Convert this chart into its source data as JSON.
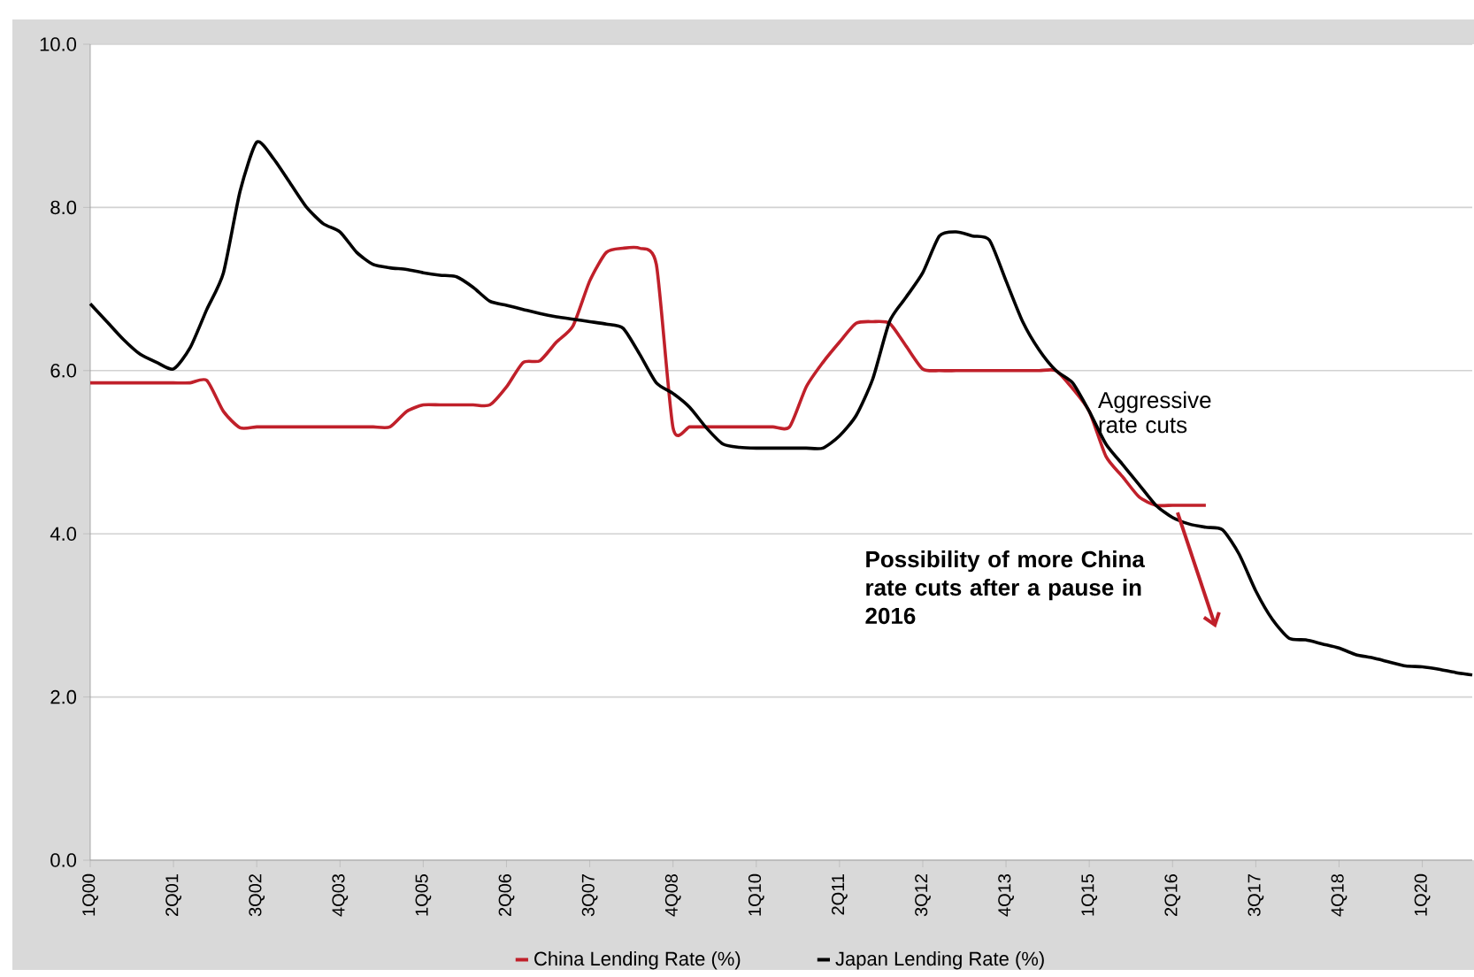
{
  "chart_data": {
    "type": "line",
    "categories": [
      "1Q00",
      null,
      null,
      null,
      null,
      "2Q01",
      null,
      null,
      null,
      null,
      "3Q02",
      null,
      null,
      null,
      null,
      "4Q03",
      null,
      null,
      null,
      null,
      "1Q05",
      null,
      null,
      null,
      null,
      "2Q06",
      null,
      null,
      null,
      null,
      "3Q07",
      null,
      null,
      null,
      null,
      "4Q08",
      null,
      null,
      null,
      null,
      "1Q10",
      null,
      null,
      null,
      null,
      "2Q11",
      null,
      null,
      null,
      null,
      "3Q12",
      null,
      null,
      null,
      null,
      "4Q13",
      null,
      null,
      null,
      null,
      "1Q15",
      null,
      null,
      null,
      null,
      "2Q16",
      null,
      null,
      null,
      null,
      "3Q17",
      null,
      null,
      null,
      null,
      "4Q18",
      null,
      null,
      null,
      null,
      "1Q20",
      null,
      null,
      null
    ],
    "series": [
      {
        "name": "China Lending Rate (%)",
        "color": "#c0202a",
        "values": [
          5.85,
          5.85,
          5.85,
          5.85,
          5.85,
          5.85,
          5.85,
          5.88,
          5.5,
          5.3,
          5.31,
          5.31,
          5.31,
          5.31,
          5.31,
          5.31,
          5.31,
          5.31,
          5.31,
          5.5,
          5.58,
          5.58,
          5.58,
          5.58,
          5.58,
          5.8,
          6.1,
          6.12,
          6.35,
          6.55,
          7.1,
          7.45,
          7.5,
          7.5,
          7.3,
          5.3,
          5.31,
          5.31,
          5.31,
          5.31,
          5.31,
          5.31,
          5.31,
          5.8,
          6.1,
          6.35,
          6.58,
          6.6,
          6.58,
          6.3,
          6.02,
          6.0,
          6.0,
          6.0,
          6.0,
          6.0,
          6.0,
          6.0,
          6.0,
          5.78,
          5.5,
          4.95,
          4.7,
          4.45,
          4.35,
          4.35,
          4.35,
          4.35,
          null,
          null,
          null,
          null,
          null,
          null,
          null,
          null,
          null,
          null,
          null,
          null,
          null,
          null,
          null,
          null
        ]
      },
      {
        "name": "Japan Lending Rate (%)",
        "color": "#000000",
        "values": [
          6.82,
          6.6,
          6.38,
          6.2,
          6.1,
          6.02,
          6.28,
          6.75,
          7.2,
          8.2,
          8.8,
          8.6,
          8.3,
          8.0,
          7.8,
          7.7,
          7.45,
          7.3,
          7.26,
          7.24,
          7.2,
          7.17,
          7.15,
          7.02,
          6.85,
          6.8,
          6.75,
          6.7,
          6.66,
          6.63,
          6.6,
          6.57,
          6.52,
          6.2,
          5.85,
          5.72,
          5.55,
          5.3,
          5.1,
          5.06,
          5.05,
          5.05,
          5.05,
          5.05,
          5.05,
          5.2,
          5.45,
          5.9,
          6.6,
          6.9,
          7.2,
          7.65,
          7.7,
          7.65,
          7.6,
          7.1,
          6.6,
          6.25,
          6.0,
          5.85,
          5.5,
          5.1,
          4.85,
          4.6,
          4.35,
          4.2,
          4.12,
          4.08,
          4.05,
          3.75,
          3.3,
          2.95,
          2.72,
          2.7,
          2.65,
          2.6,
          2.52,
          2.48,
          2.43,
          2.38,
          2.37,
          2.34,
          2.3,
          2.27
        ]
      }
    ],
    "ylim": [
      0,
      10
    ],
    "yticks": [
      {
        "value": 0,
        "label": "0.0"
      },
      {
        "value": 2,
        "label": "2.0"
      },
      {
        "value": 4,
        "label": "4.0"
      },
      {
        "value": 6,
        "label": "6.0"
      },
      {
        "value": 8,
        "label": "8.0"
      },
      {
        "value": 10,
        "label": "10.0"
      }
    ],
    "grid": "y",
    "legend": "bottom",
    "marker": "none",
    "line_style": "solid",
    "annotations": [
      "Aggressive rate cuts",
      "Possibility of more China rate cuts after a pause in 2016"
    ]
  }
}
